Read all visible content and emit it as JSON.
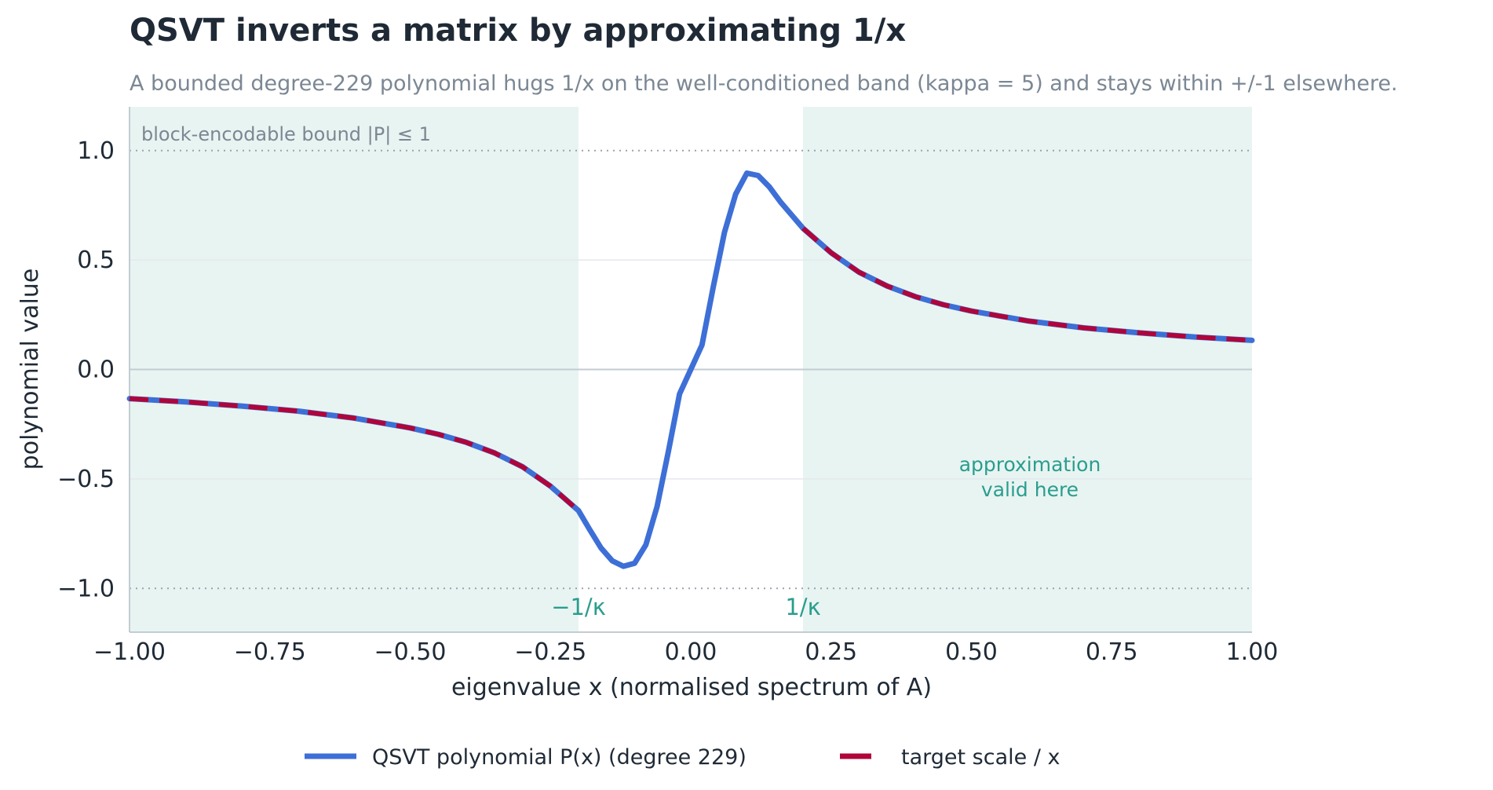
{
  "chart_data": {
    "type": "line",
    "title": "QSVT inverts a matrix by approximating 1/x",
    "subtitle": "A bounded degree-229 polynomial hugs 1/x on the well-conditioned band (kappa = 5) and stays within +/-1 elsewhere.",
    "xlabel": "eigenvalue  x   (normalised spectrum of A)",
    "ylabel": "polynomial value",
    "xlim": [
      -1.0,
      1.0
    ],
    "ylim": [
      -1.2,
      1.2
    ],
    "xticks": [
      -1.0,
      -0.75,
      -0.5,
      -0.25,
      0.0,
      0.25,
      0.5,
      0.75,
      1.0
    ],
    "xtick_labels": [
      "−1.00",
      "−0.75",
      "−0.50",
      "−0.25",
      "0.00",
      "0.25",
      "0.50",
      "0.75",
      "1.00"
    ],
    "yticks": [
      -1.0,
      -0.5,
      0.0,
      0.5,
      1.0
    ],
    "ytick_labels": [
      "−1.0",
      "−0.5",
      "0.0",
      "0.5",
      "1.0"
    ],
    "grid": "horizontal",
    "kappa": 5,
    "valid_bands": [
      [
        -1.0,
        -0.2
      ],
      [
        0.2,
        1.0
      ]
    ],
    "bound_lines": [
      1.0,
      -1.0
    ],
    "series": [
      {
        "name": "QSVT polynomial  P(x)   (degree 229)",
        "color": "#3d6fd6",
        "style": "solid",
        "x": [
          -1.0,
          -0.9,
          -0.8,
          -0.7,
          -0.6,
          -0.5,
          -0.45,
          -0.4,
          -0.35,
          -0.3,
          -0.25,
          -0.2,
          -0.18,
          -0.16,
          -0.14,
          -0.12,
          -0.1,
          -0.08,
          -0.06,
          -0.04,
          -0.02,
          0.0,
          0.02,
          0.04,
          0.06,
          0.08,
          0.1,
          0.12,
          0.14,
          0.16,
          0.18,
          0.2,
          0.25,
          0.3,
          0.35,
          0.4,
          0.45,
          0.5,
          0.6,
          0.7,
          0.8,
          0.9,
          1.0
        ],
        "y": [
          -0.133,
          -0.148,
          -0.167,
          -0.19,
          -0.222,
          -0.267,
          -0.296,
          -0.333,
          -0.381,
          -0.444,
          -0.533,
          -0.645,
          -0.732,
          -0.815,
          -0.874,
          -0.899,
          -0.885,
          -0.801,
          -0.626,
          -0.376,
          -0.112,
          0.0,
          0.112,
          0.376,
          0.626,
          0.801,
          0.897,
          0.886,
          0.834,
          0.765,
          0.705,
          0.645,
          0.533,
          0.444,
          0.381,
          0.333,
          0.296,
          0.267,
          0.222,
          0.19,
          0.167,
          0.148,
          0.133
        ]
      },
      {
        "name": "target  scale / x",
        "color": "#b0053a",
        "style": "dashed",
        "x": [
          -1.0,
          -0.9,
          -0.8,
          -0.7,
          -0.6,
          -0.5,
          -0.45,
          -0.4,
          -0.35,
          -0.3,
          -0.25,
          -0.2,
          0.2,
          0.25,
          0.3,
          0.35,
          0.4,
          0.45,
          0.5,
          0.6,
          0.7,
          0.8,
          0.9,
          1.0
        ],
        "y": [
          -0.133,
          -0.148,
          -0.167,
          -0.19,
          -0.222,
          -0.267,
          -0.296,
          -0.333,
          -0.381,
          -0.444,
          -0.533,
          -0.645,
          0.645,
          0.533,
          0.444,
          0.381,
          0.333,
          0.296,
          0.267,
          0.222,
          0.19,
          0.167,
          0.148,
          0.133
        ]
      }
    ],
    "annotations": {
      "bound_label": "block-encodable bound  |P| ≤ 1",
      "valid_label_line1": "approximation",
      "valid_label_line2": "valid here",
      "neg_kappa_label": "−1/κ",
      "pos_kappa_label": "1/κ"
    },
    "legend": {
      "placement": "bottom-center",
      "entries": [
        {
          "label": "QSVT polynomial  P(x)   (degree 229)",
          "color": "#3d6fd6",
          "style": "solid"
        },
        {
          "label": "target  scale / x",
          "color": "#b0053a",
          "style": "dashed"
        }
      ]
    },
    "colors": {
      "band_fill": "#e8f4f1",
      "accent": "#2a9d8f",
      "grid": "#e4e8ec",
      "spine": "#c3cbd3",
      "bound": "#9aa3ad"
    }
  }
}
